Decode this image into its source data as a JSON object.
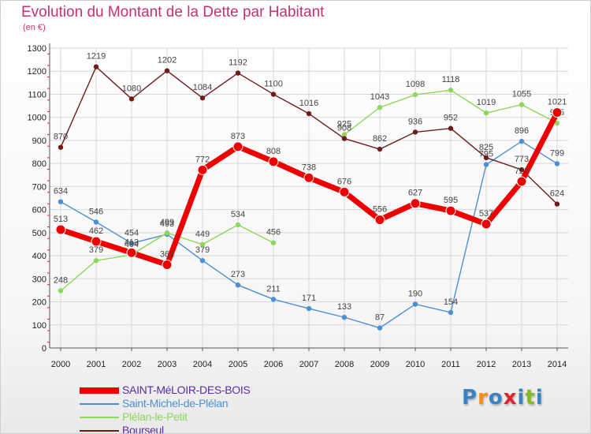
{
  "chart_data": {
    "type": "line",
    "title": "Evolution du Montant de la Dette par Habitant",
    "subtitle": "(en €)",
    "categories": [
      "2000",
      "2001",
      "2002",
      "2003",
      "2004",
      "2005",
      "2006",
      "2007",
      "2008",
      "2009",
      "2010",
      "2011",
      "2012",
      "2013",
      "2014"
    ],
    "ylim": [
      0,
      1300
    ],
    "yticks": [
      0,
      100,
      200,
      300,
      400,
      500,
      600,
      700,
      800,
      900,
      1000,
      1100,
      1200,
      1300
    ],
    "grid": true,
    "legend_position": "bottom-left",
    "series": [
      {
        "name": "SAINT-MéLOIR-DES-BOIS",
        "color": "#ee0000",
        "emphasis": true,
        "values": [
          513,
          462,
          413,
          361,
          772,
          873,
          808,
          738,
          676,
          556,
          627,
          595,
          537,
          722,
          1021
        ]
      },
      {
        "name": "Saint-Michel-de-Plélan",
        "color": "#4d8fd1",
        "emphasis": false,
        "values": [
          634,
          546,
          454,
          493,
          379,
          273,
          211,
          171,
          133,
          87,
          190,
          154,
          795,
          896,
          799
        ]
      },
      {
        "name": "Plélan-le-Petit",
        "color": "#8ed65c",
        "emphasis": false,
        "values": [
          248,
          379,
          404,
          499,
          449,
          534,
          456,
          null,
          925,
          1043,
          1098,
          1118,
          1019,
          1055,
          975
        ]
      },
      {
        "name": "Bourseul",
        "color": "#6e1c1c",
        "emphasis": false,
        "values": [
          870,
          1219,
          1080,
          1202,
          1084,
          1192,
          1100,
          1016,
          908,
          862,
          936,
          952,
          825,
          773,
          624
        ]
      }
    ]
  },
  "logo": {
    "text": "Proxiti",
    "colors": [
      "#3b82c4",
      "#f28c1b",
      "#3b82c4",
      "#d9262f",
      "#3b82c4",
      "#88b825",
      "#3b82c4"
    ]
  }
}
